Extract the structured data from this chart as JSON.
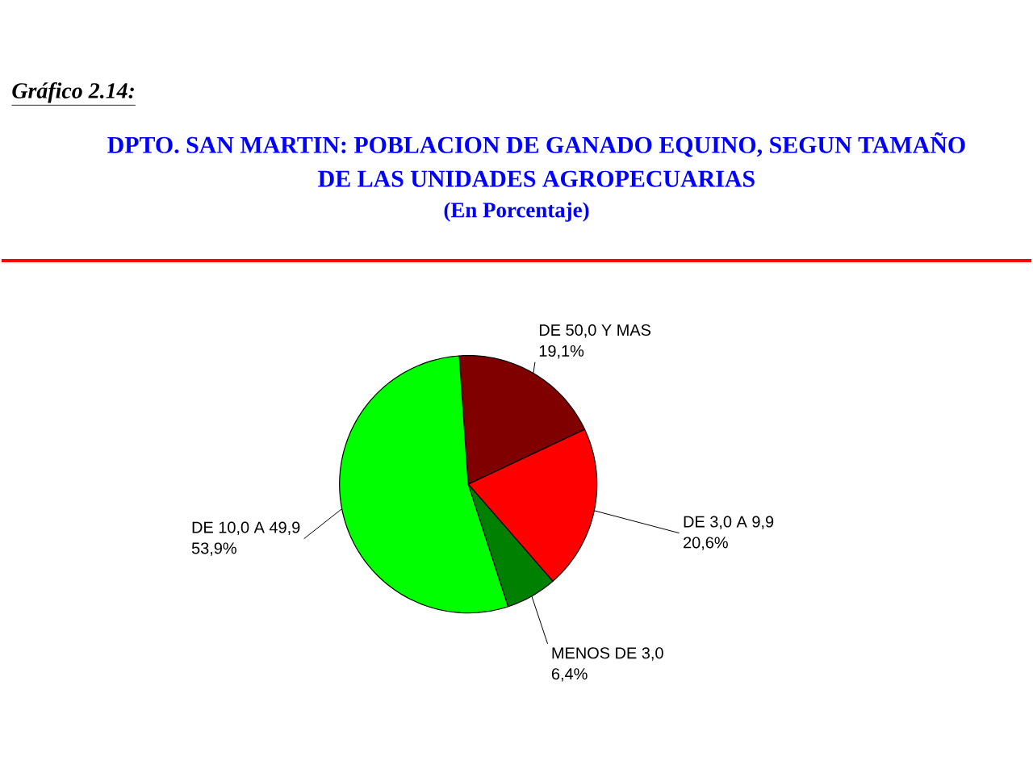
{
  "chart_data": {
    "type": "pie",
    "title": "DPTO. SAN MARTIN: POBLACION DE GANADO EQUINO, SEGUN TAMAÑO DE LAS UNIDADES AGROPECUARIAS",
    "subtitle": "(En Porcentaje)",
    "annotations": [
      "Gráfico  2.14:"
    ],
    "categories": [
      "DE 50,0 Y MAS",
      "DE 3,0 A 9,9",
      "MENOS DE 3,0",
      "DE 10,0 A 49,9"
    ],
    "values": [
      19.1,
      20.6,
      6.4,
      53.9
    ],
    "colors": [
      "#800000",
      "#ff0000",
      "#008000",
      "#00ff00"
    ],
    "value_labels": [
      "19,1%",
      "20,6%",
      "6,4%",
      "53,9%"
    ]
  }
}
